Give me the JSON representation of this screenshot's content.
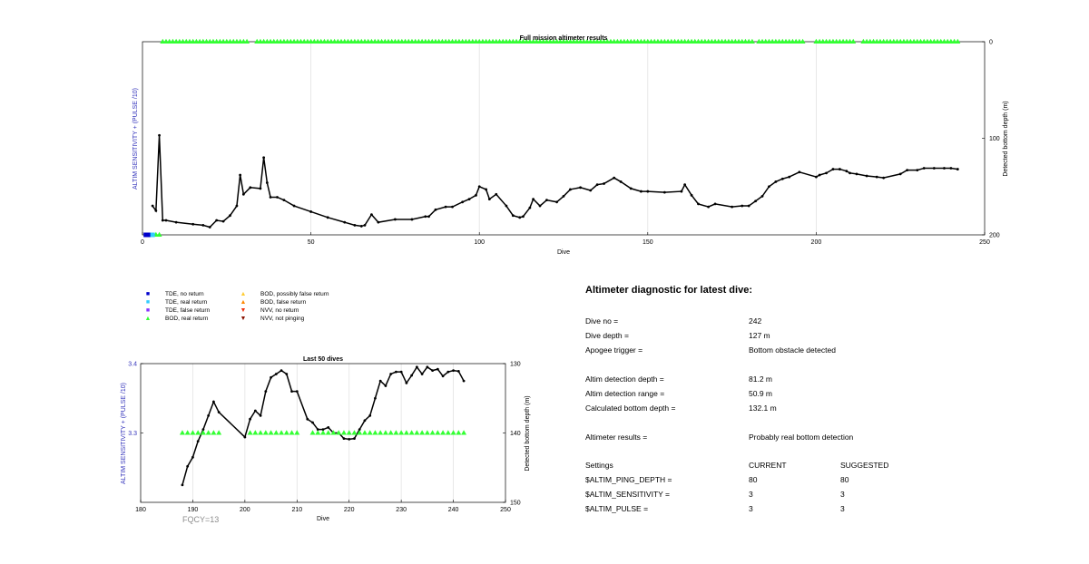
{
  "chart_data": [
    {
      "type": "line",
      "title": "Full mission altimeter results",
      "xlabel": "Dive",
      "ylabel": "ALTIM SENSITIVITY + (PULSE /10)",
      "y2label": "Detected bottom depth (m)",
      "xlim": [
        0,
        250
      ],
      "y2lim": [
        0,
        200
      ],
      "y2_reversed": true,
      "xticks": [
        "0",
        "50",
        "100",
        "150",
        "200",
        "250"
      ],
      "y2ticks": [
        "0",
        "100",
        "200"
      ],
      "grid_x": true,
      "series": [
        {
          "name": "Detected bottom depth",
          "color": "#000000",
          "x": [
            3,
            4,
            5,
            6,
            7,
            10,
            15,
            18,
            20,
            22,
            24,
            26,
            28,
            29,
            30,
            32,
            35,
            36,
            37,
            38,
            40,
            42,
            45,
            50,
            55,
            60,
            63,
            65,
            66,
            68,
            70,
            75,
            80,
            84,
            85,
            87,
            90,
            92,
            95,
            97,
            99,
            100,
            102,
            103,
            105,
            108,
            110,
            112,
            113,
            115,
            116,
            118,
            120,
            123,
            125,
            127,
            130,
            133,
            135,
            137,
            140,
            142,
            145,
            148,
            150,
            155,
            160,
            161,
            163,
            165,
            168,
            170,
            175,
            178,
            180,
            182,
            184,
            186,
            188,
            190,
            192,
            195,
            200,
            201,
            203,
            205,
            207,
            209,
            210,
            212,
            215,
            218,
            220,
            225,
            227,
            230,
            232,
            235,
            238,
            240,
            242
          ],
          "values": [
            170,
            175,
            97,
            185,
            185,
            187,
            189,
            190,
            192,
            185,
            186,
            180,
            170,
            138,
            158,
            151,
            152,
            120,
            146,
            161,
            161,
            164,
            170,
            176,
            182,
            187,
            190,
            191,
            190,
            179,
            187,
            184,
            184,
            181,
            181,
            174,
            171,
            171,
            166,
            163,
            159,
            150,
            153,
            163,
            158,
            170,
            180,
            182,
            181,
            172,
            163,
            170,
            164,
            166,
            160,
            153,
            151,
            154,
            148,
            147,
            141,
            145,
            152,
            155,
            155,
            156,
            155,
            148,
            159,
            168,
            171,
            168,
            171,
            170,
            170,
            165,
            160,
            150,
            145,
            142,
            140,
            135,
            140,
            138,
            136,
            132,
            132,
            134,
            136,
            137,
            139,
            140,
            141,
            137,
            133,
            133,
            131,
            131,
            131,
            131,
            132
          ]
        },
        {
          "name": "BOD, real return",
          "color": "#33ff33",
          "marker": "triangle",
          "y2_value": 0,
          "x": [
            6,
            7,
            8,
            9,
            10,
            11,
            12,
            13,
            14,
            15,
            16,
            17,
            18,
            19,
            20,
            21,
            22,
            23,
            24,
            25,
            26,
            27,
            28,
            29,
            30,
            31,
            34,
            35,
            36,
            37,
            38,
            39,
            40,
            41,
            42,
            43,
            44,
            45,
            46,
            47,
            48,
            49,
            50,
            51,
            52,
            53,
            54,
            55,
            56,
            57,
            58,
            59,
            60,
            61,
            62,
            63,
            64,
            65,
            66,
            67,
            68,
            69,
            70,
            71,
            72,
            73,
            74,
            75,
            76,
            77,
            78,
            79,
            80,
            81,
            82,
            83,
            84,
            85,
            86,
            87,
            88,
            89,
            90,
            91,
            92,
            93,
            94,
            95,
            96,
            97,
            98,
            99,
            100,
            101,
            102,
            103,
            104,
            105,
            106,
            107,
            108,
            109,
            110,
            111,
            112,
            113,
            114,
            115,
            116,
            117,
            118,
            119,
            120,
            121,
            122,
            123,
            124,
            125,
            126,
            127,
            128,
            129,
            130,
            131,
            132,
            133,
            134,
            135,
            136,
            137,
            138,
            139,
            140,
            141,
            142,
            143,
            144,
            145,
            146,
            147,
            148,
            149,
            150,
            151,
            152,
            153,
            154,
            155,
            156,
            157,
            158,
            159,
            160,
            161,
            162,
            163,
            164,
            165,
            166,
            167,
            168,
            169,
            170,
            171,
            172,
            173,
            174,
            175,
            176,
            177,
            178,
            179,
            180,
            181,
            183,
            184,
            185,
            186,
            187,
            188,
            189,
            190,
            191,
            192,
            193,
            194,
            195,
            196,
            200,
            201,
            202,
            203,
            204,
            205,
            206,
            207,
            208,
            209,
            210,
            211,
            214,
            215,
            216,
            217,
            218,
            219,
            220,
            221,
            222,
            223,
            224,
            225,
            226,
            227,
            228,
            229,
            230,
            231,
            232,
            233,
            234,
            235,
            236,
            237,
            238,
            239,
            240,
            241,
            242
          ]
        },
        {
          "name": "BOD, real return (low)",
          "color": "#33ff33",
          "marker": "triangle",
          "y2_value": 200,
          "x": [
            4,
            5
          ]
        },
        {
          "name": "TDE, no return",
          "color": "#0000cc",
          "marker": "square",
          "y2_value": 200,
          "x": [
            1,
            2
          ]
        },
        {
          "name": "TDE, real return",
          "color": "#33ccff",
          "marker": "square",
          "y2_value": 200,
          "x": [
            3
          ]
        }
      ]
    },
    {
      "type": "line",
      "title": "Last 50 dives",
      "xlabel": "Dive",
      "ylabel": "ALTIM SENSITIVITY + (PULSE /10)",
      "y2label": "Detected bottom depth (m)",
      "xlim": [
        180,
        250
      ],
      "ylim": [
        3.2,
        3.4
      ],
      "y2lim": [
        130,
        150
      ],
      "y2_reversed": true,
      "xticks": [
        "180",
        "190",
        "200",
        "210",
        "220",
        "230",
        "240",
        "250"
      ],
      "yticks": [
        "3.3",
        "3.4"
      ],
      "y2ticks": [
        "130",
        "140",
        "150"
      ],
      "grid_x": true,
      "series": [
        {
          "name": "Detected bottom depth",
          "color": "#000000",
          "x": [
            188,
            189,
            190,
            191,
            192,
            193,
            194,
            195,
            200,
            201,
            202,
            203,
            204,
            205,
            206,
            207,
            208,
            209,
            210,
            212,
            213,
            214,
            215,
            216,
            217,
            218,
            219,
            220,
            221,
            222,
            223,
            224,
            225,
            226,
            227,
            228,
            229,
            230,
            231,
            232,
            233,
            234,
            235,
            236,
            237,
            238,
            239,
            240,
            241,
            242
          ],
          "values": [
            147.5,
            144.8,
            143.5,
            141.2,
            139.5,
            137.5,
            135.5,
            137,
            140.6,
            138,
            136.8,
            137.5,
            134,
            132,
            131.5,
            131,
            131.5,
            134,
            134,
            138,
            138.5,
            139.5,
            139.5,
            139.2,
            140,
            140,
            140.8,
            140.9,
            140.8,
            139.5,
            138.2,
            137.5,
            135,
            132.5,
            133.2,
            131.5,
            131.2,
            131.2,
            132.8,
            131.7,
            130.5,
            131.5,
            130.5,
            131,
            130.8,
            131.8,
            131.2,
            131,
            131.1,
            132.5
          ]
        },
        {
          "name": "BOD, real return",
          "color": "#33ff33",
          "marker": "triangle",
          "y_value": 3.3,
          "x": [
            188,
            189,
            190,
            191,
            192,
            193,
            194,
            195,
            201,
            202,
            203,
            204,
            205,
            206,
            207,
            208,
            209,
            210,
            213,
            214,
            215,
            216,
            217,
            218,
            219,
            220,
            221,
            222,
            223,
            224,
            225,
            226,
            227,
            228,
            229,
            230,
            231,
            232,
            233,
            234,
            235,
            236,
            237,
            238,
            239,
            240,
            241,
            242
          ]
        }
      ]
    }
  ],
  "legend": {
    "items": [
      {
        "label": "TDE, no return",
        "symbol": "■",
        "color": "#0000cc"
      },
      {
        "label": "TDE, real return",
        "symbol": "■",
        "color": "#33ccff"
      },
      {
        "label": "TDE, false return",
        "symbol": "■",
        "color": "#8833ff"
      },
      {
        "label": "BOD, real return",
        "symbol": "▲",
        "color": "#33ff33"
      },
      {
        "label": "BOD, possibly false return",
        "symbol": "▲",
        "color": "#ffcc33"
      },
      {
        "label": "BOD, false return",
        "symbol": "▲",
        "color": "#ff8800"
      },
      {
        "label": "NVV, no return",
        "symbol": "▼",
        "color": "#ee3311"
      },
      {
        "label": "NVV, not pinging",
        "symbol": "▼",
        "color": "#881100"
      }
    ]
  },
  "fqcy": "FQCY=13",
  "diagnostic": {
    "title": "Altimeter diagnostic for latest dive:",
    "dive_no_label": "Dive no =",
    "dive_no": "242",
    "dive_depth_label": "Dive depth =",
    "dive_depth": "127 m",
    "apogee_label": "Apogee trigger =",
    "apogee": "Bottom obstacle detected",
    "det_depth_label": "Altim detection depth =",
    "det_depth": "81.2 m",
    "det_range_label": "Altim detection range =",
    "det_range": "50.9 m",
    "calc_depth_label": "Calculated bottom depth =",
    "calc_depth": "132.1 m",
    "results_label": "Altimeter results =",
    "results": "Probably real bottom detection",
    "settings_label": "Settings",
    "current_label": "CURRENT",
    "suggested_label": "SUGGESTED",
    "ping_depth_label": "$ALTIM_PING_DEPTH =",
    "ping_depth_current": "80",
    "ping_depth_suggested": "80",
    "sensitivity_label": "$ALTIM_SENSITIVITY =",
    "sensitivity_current": "3",
    "sensitivity_suggested": "3",
    "pulse_label": "$ALTIM_PULSE =",
    "pulse_current": "3",
    "pulse_suggested": "3"
  }
}
